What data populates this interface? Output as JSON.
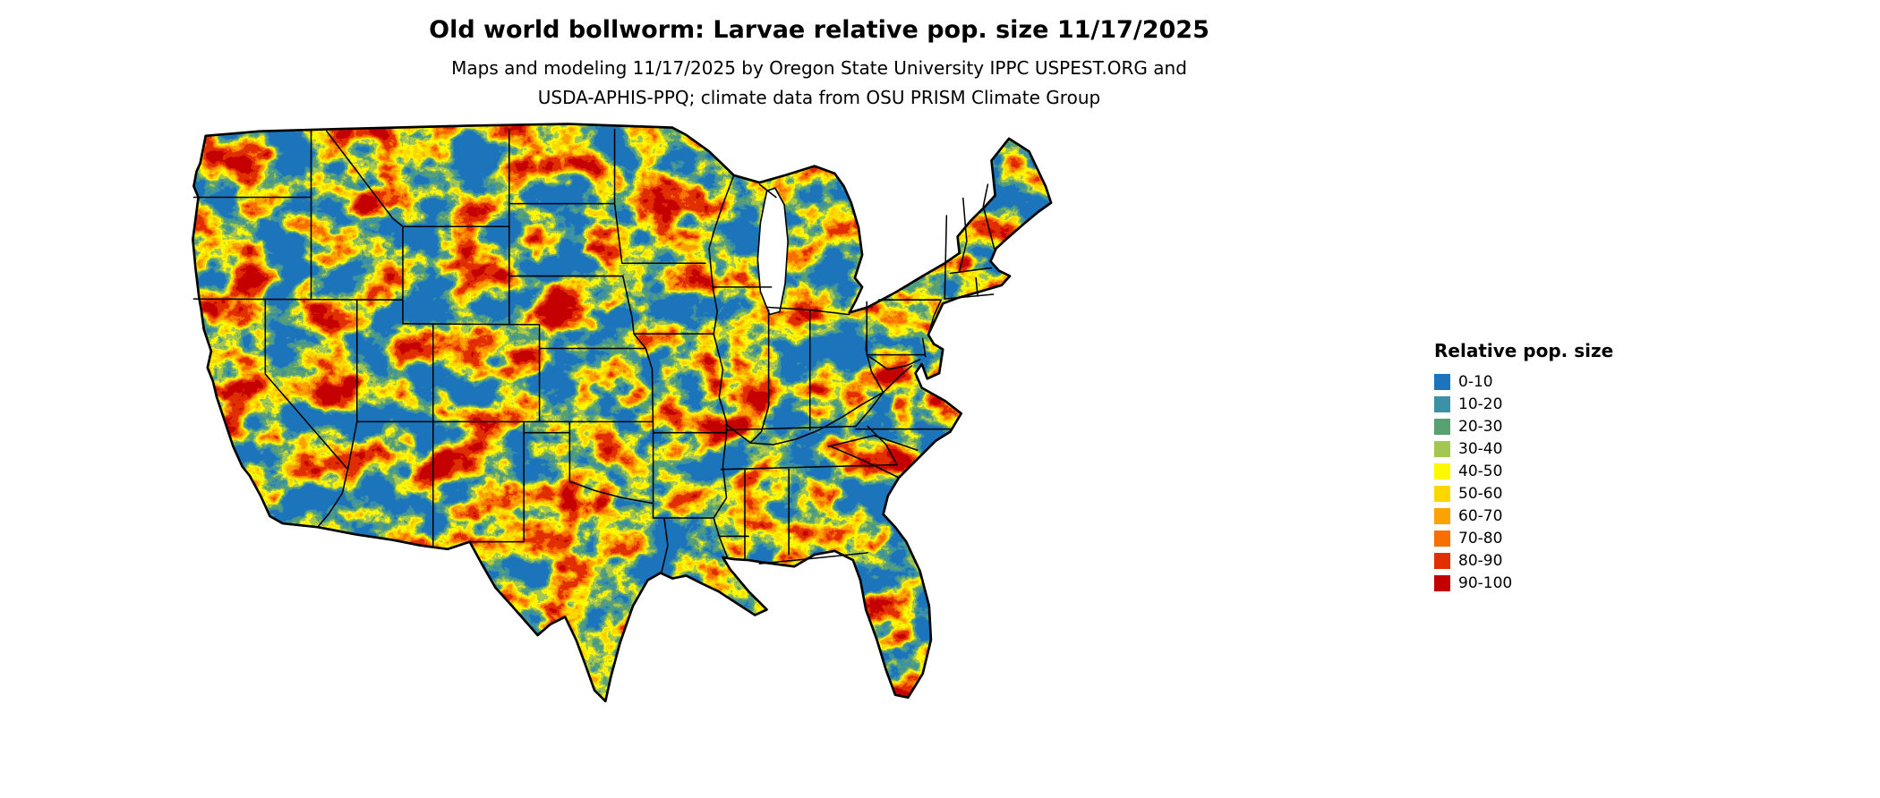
{
  "header": {
    "title": "Old world bollworm: Larvae relative pop. size 11/17/2025",
    "subtitle_line1": "Maps and modeling 11/17/2025 by Oregon State University IPPC USPEST.ORG and",
    "subtitle_line2": "USDA-APHIS-PPQ; climate data from OSU PRISM Climate Group"
  },
  "map": {
    "region": "Contiguous United States",
    "kind": "raster pest population map with state boundaries"
  },
  "legend": {
    "title": "Relative pop. size",
    "items": [
      {
        "label": "0-10",
        "color": "#1c75bc"
      },
      {
        "label": "10-20",
        "color": "#3d91a4"
      },
      {
        "label": "20-30",
        "color": "#58a173"
      },
      {
        "label": "30-40",
        "color": "#a4c653"
      },
      {
        "label": "40-50",
        "color": "#fdf900"
      },
      {
        "label": "50-60",
        "color": "#fcd800"
      },
      {
        "label": "60-70",
        "color": "#fba302"
      },
      {
        "label": "70-80",
        "color": "#f86f00"
      },
      {
        "label": "80-90",
        "color": "#e22f00"
      },
      {
        "label": "90-100",
        "color": "#c40000"
      }
    ]
  }
}
